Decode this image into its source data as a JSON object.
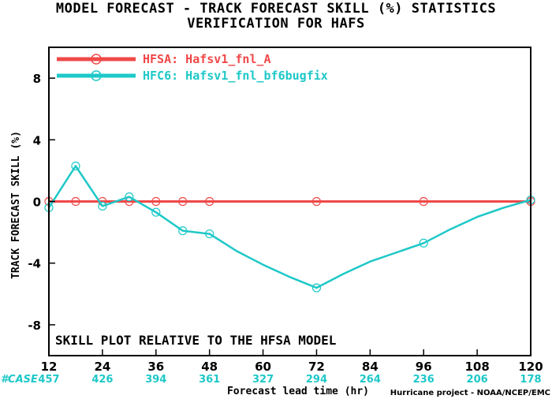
{
  "chart_data": {
    "type": "line",
    "title": "MODEL FORECAST - TRACK FORECAST SKILL (%) STATISTICS",
    "subtitle": "VERIFICATION FOR HAFS",
    "xlabel": "Forecast lead time (hr)",
    "ylabel": "TRACK FORECAST SKILL (%)",
    "xlim": [
      12,
      120
    ],
    "ylim": [
      -10,
      10
    ],
    "x_ticks": [
      12,
      24,
      36,
      48,
      60,
      72,
      84,
      96,
      108,
      120
    ],
    "y_ticks": [
      8,
      4,
      0,
      -4,
      -8
    ],
    "grid": false,
    "legend_position": "top-left",
    "annotation": "SKILL PLOT RELATIVE TO THE HFSA MODEL",
    "case_label": "#CASE",
    "cases": [
      "457",
      "426",
      "394",
      "361",
      "327",
      "294",
      "264",
      "236",
      "206",
      "178"
    ],
    "credit": "Hurricane project - NOAA/NCEP/EMC",
    "series": [
      {
        "name": "HFSA: Hafsv1_fnl_A",
        "color": "#f04848",
        "x": [
          12,
          18,
          24,
          30,
          36,
          42,
          48,
          54,
          60,
          66,
          72,
          78,
          84,
          90,
          96,
          102,
          108,
          114,
          120
        ],
        "y": [
          0,
          0,
          0,
          0,
          0,
          0,
          0,
          0,
          0,
          0,
          0,
          0,
          0,
          0,
          0,
          0,
          0,
          0,
          0
        ],
        "markers_at": [
          12,
          18,
          24,
          30,
          36,
          42,
          48,
          72,
          96,
          120
        ]
      },
      {
        "name": "HFC6: Hafsv1_fnl_bf6bugfix",
        "color": "#1ec8c8",
        "x": [
          12,
          18,
          24,
          30,
          36,
          42,
          48,
          54,
          60,
          66,
          72,
          78,
          84,
          90,
          96,
          102,
          108,
          114,
          120
        ],
        "y": [
          -0.4,
          2.3,
          -0.3,
          0.3,
          -0.7,
          -1.9,
          -2.1,
          -3.2,
          -4.1,
          -4.9,
          -5.6,
          -4.7,
          -3.9,
          -3.3,
          -2.7,
          -1.8,
          -1.0,
          -0.4,
          0.1
        ],
        "markers_at": [
          12,
          18,
          24,
          30,
          36,
          42,
          48,
          72,
          96,
          120
        ]
      }
    ]
  }
}
